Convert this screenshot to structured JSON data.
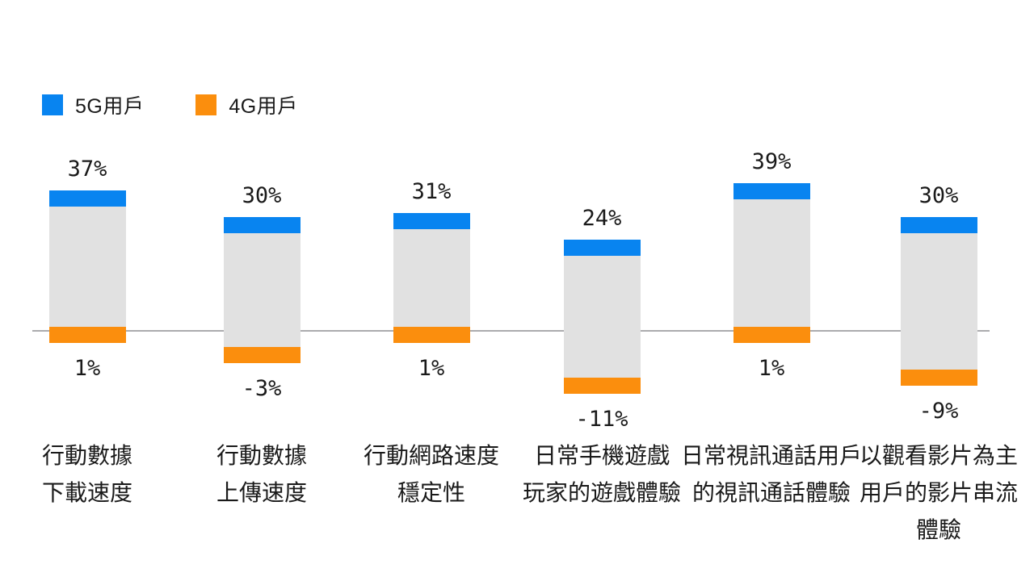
{
  "legend": {
    "items": [
      {
        "label": "5G用戶",
        "color": "#0884F0"
      },
      {
        "label": "4G用戶",
        "color": "#FB8E0D"
      }
    ]
  },
  "colors": {
    "blue_5g": "#0884F0",
    "orange_4g": "#FB8E0D",
    "bar_track": "#E1E1E1",
    "axis_line": "#ABABAE",
    "text": "#1A1A1A",
    "background": "#FFFFFF"
  },
  "chart_data": {
    "type": "bar",
    "title": "",
    "subtitle": "",
    "categories": [
      "行動數據 下載速度",
      "行動數據 上傳速度",
      "行動網路速度 穩定性",
      "日常手機遊戲 玩家的遊戲體驗",
      "日常視訊通話用戶 的視訊通話體驗",
      "以觀看影片為主 用戶的影片串流 體驗"
    ],
    "category_lines": [
      [
        "行動數據",
        "下載速度"
      ],
      [
        "行動數據",
        "上傳速度"
      ],
      [
        "行動網路速度",
        "穩定性"
      ],
      [
        "日常手機遊戲",
        "玩家的遊戲體驗"
      ],
      [
        "日常視訊通話用戶",
        "的視訊通話體驗"
      ],
      [
        "以觀看影片為主",
        "用戶的影片串流",
        "體驗"
      ]
    ],
    "series": [
      {
        "name": "5G用戶",
        "color": "#0884F0",
        "values": [
          37,
          30,
          31,
          24,
          39,
          30
        ],
        "labels": [
          "37%",
          "30%",
          "31%",
          "24%",
          "39%",
          "30%"
        ]
      },
      {
        "name": "4G用戶",
        "color": "#FB8E0D",
        "values": [
          1,
          -3,
          1,
          -11,
          1,
          -9
        ],
        "labels": [
          "1%",
          "-3%",
          "1%",
          "-11%",
          "1%",
          "-9%"
        ]
      }
    ],
    "value_suffix": "%",
    "ylim": [
      -15,
      45
    ],
    "legend_position": "top-left",
    "grid": false,
    "zero_baseline": true,
    "bar_style": "floating range bars on a gray track: blue cap marks 5G user value at top, orange cap marks 4G user value at bottom, labels outside each cap"
  }
}
